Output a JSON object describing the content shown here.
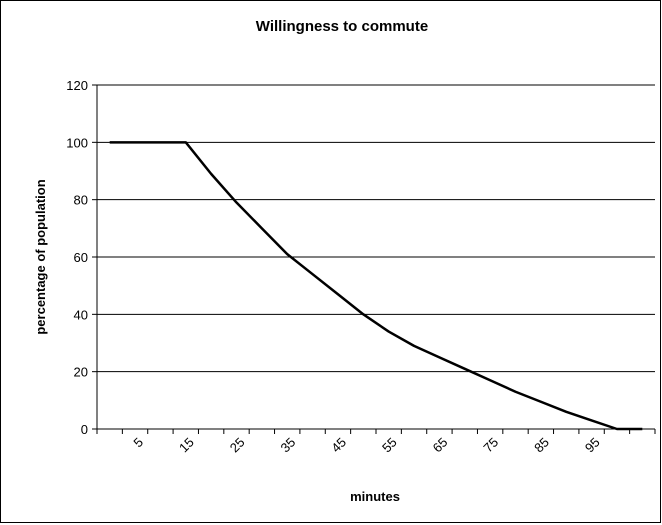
{
  "chart_data": {
    "type": "line",
    "title": "Willingness to commute",
    "x_label": "minutes",
    "y_label": "percentage of population",
    "categories": [
      null,
      "5",
      null,
      "15",
      null,
      "25",
      null,
      "35",
      null,
      "45",
      null,
      "55",
      null,
      "65",
      null,
      "75",
      null,
      "85",
      null,
      "95",
      null,
      null
    ],
    "values": [
      100,
      100,
      100,
      100,
      89,
      79,
      70,
      61,
      54,
      47,
      40,
      34,
      29,
      25,
      21,
      17,
      13,
      9.5,
      6,
      3,
      0,
      0
    ],
    "color": "#000000",
    "ylim": [
      0,
      120
    ],
    "yticks": [
      0,
      20,
      40,
      60,
      80,
      100,
      120
    ],
    "grid": true
  }
}
